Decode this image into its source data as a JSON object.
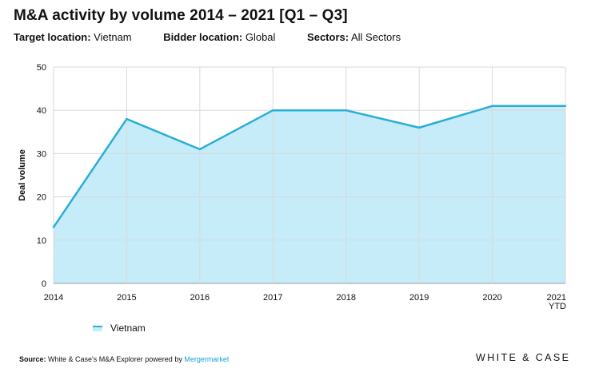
{
  "header": {
    "title": "M&A activity by volume 2014 – 2021 [Q1 – Q3]",
    "filters": [
      {
        "label": "Target location:",
        "value": "Vietnam"
      },
      {
        "label": "Bidder location:",
        "value": "Global"
      },
      {
        "label": "Sectors:",
        "value": "All Sectors"
      }
    ]
  },
  "chart_data": {
    "type": "area",
    "title": "M&A activity by volume 2014 – 2021 [Q1 – Q3]",
    "xlabel": "",
    "ylabel": "Deal volume",
    "categories": [
      "2014",
      "2015",
      "2016",
      "2017",
      "2018",
      "2019",
      "2020",
      "2021 YTD"
    ],
    "series": [
      {
        "name": "Vietnam",
        "values": [
          13,
          38,
          31,
          40,
          40,
          36,
          41,
          41
        ]
      }
    ],
    "ylim": [
      0,
      50
    ],
    "yticks": [
      0,
      10,
      20,
      30,
      40,
      50
    ],
    "grid": true,
    "legend": "bottom-left",
    "colors": {
      "line": "#29aed6",
      "fill": "#c5ecf8",
      "grid": "#d9d9d9"
    }
  },
  "footer": {
    "source_label": "Source:",
    "source_text": "White & Case's M&A Explorer powered by",
    "source_link": "Mergermarket",
    "brand": "WHITE & CASE"
  }
}
